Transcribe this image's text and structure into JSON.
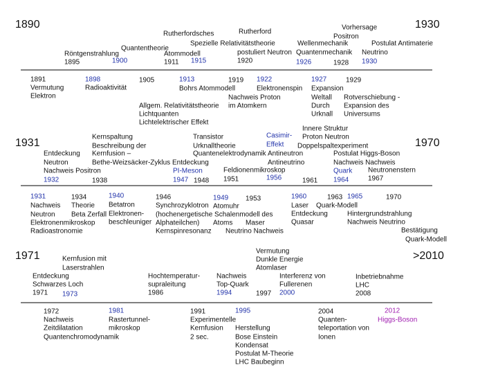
{
  "periods": [
    {
      "start": "1890",
      "end": "1930",
      "above": [
        "Vorhersage",
        "Rutherfordsches",
        "Rutherford",
        "Positron",
        "Spezielle Relativitätstheorie",
        "Wellenmechanik",
        "Postulat Antimaterie",
        "Quantentheorie",
        "Röntgenstrahlung",
        "Atommodell",
        "postuliert Neutron",
        "Quantenmechanik",
        "Neutrino",
        "1895",
        "1900",
        "1911",
        "1915",
        "1920",
        "1926",
        "1928",
        "1930"
      ],
      "below": [
        "1891",
        "Vermutung",
        "Elektron",
        "1898",
        "Radioaktivität",
        "1905",
        "1913",
        "Bohrs Atommodell",
        "1919",
        "1922",
        "Elektronenspin",
        "1927",
        "1929",
        "Expansion",
        "Nachweis Proton",
        "Weltall",
        "Rotverschiebung -",
        "Allgem. Relativitätstheorie",
        "im Atomkern",
        "Durch",
        "Expansion des",
        "Lichtquanten",
        "Urknall",
        "Universums",
        "Lichtelektrischer Effekt"
      ]
    },
    {
      "start": "1931",
      "end": "1970",
      "above": [
        "Innere Struktur",
        "Kernspaltung",
        "Transistor",
        "Casimir-",
        "Proton Neutron",
        "Beschreibung der",
        "Urknalltheorie",
        "Effekt",
        "Doppelspaltexperiment",
        "Entdeckung",
        "Kernfusion –",
        "Quantenelektrodynamik",
        "Antineutron",
        "Postulat Higgs-Boson",
        "Neutron",
        "Bethe-Weizsäcker-Zyklus Entdeckung",
        "Antineutrino",
        "Nachweis Nachweis",
        "Nachweis Positron",
        "PI-Meson",
        "Feldionenmikroskop",
        "Quark",
        "Neutronenstern",
        "1932",
        "1938",
        "1947",
        "1948",
        "1951",
        "1956",
        "1961",
        "1964",
        "1967"
      ],
      "below": [
        "1931",
        "1934",
        "1940",
        "1946",
        "1949",
        "1953",
        "1960",
        "1963",
        "1965",
        "1970",
        "Nachweis",
        "Theorie",
        "Betatron",
        "Synchrozyklotron",
        "Atomuhr",
        "Laser",
        "Quark-Modell",
        "Neutron",
        "Beta Zerfall",
        "Elektronen-",
        "(hochenergetische Schalenmodell des",
        "Entdeckung",
        "Hintergrundstrahlung",
        "Elektronenmikroskop",
        "beschleuniger",
        "Alphateilchen)",
        "Atoms",
        "Maser",
        "Quasar",
        "Nachweis Neutrino",
        "Radioastronomie",
        "Kernspinresonanz",
        "Neutrino Nachweis",
        "Bestätigung",
        "Quark-Modell"
      ]
    },
    {
      "start": "1971",
      "end": ">2010",
      "above": [
        "Vermutung",
        "Kernfusion mit",
        "Dunkle Energie",
        "Laserstrahlen",
        "Atomlaser",
        "Entdeckung",
        "Hochtemperatur-",
        "Nachweis",
        "Interferenz von",
        "Inbetriebnahme",
        "Schwarzes Loch",
        "supraleitung",
        "Top-Quark",
        "Fullerenen",
        "LHC",
        "1971",
        "1973",
        "1986",
        "1994",
        "1997",
        "2000",
        "2008"
      ],
      "below": [
        "1972",
        "1981",
        "1991",
        "1995",
        "2004",
        "2012",
        "Nachweis",
        "Rastertunnel-",
        "Experimentelle",
        "Quanten-",
        "Higgs-Boson",
        "Zeitdilatation",
        "mikroskop",
        "Kernfusion",
        "Herstellung",
        "teleportation von",
        "Quantenchromodynamik",
        "2 sec.",
        "Bose Einstein",
        "Ionen",
        "Kondensat",
        "Postulat M-Theorie",
        "LHC Baubeginn"
      ]
    }
  ]
}
